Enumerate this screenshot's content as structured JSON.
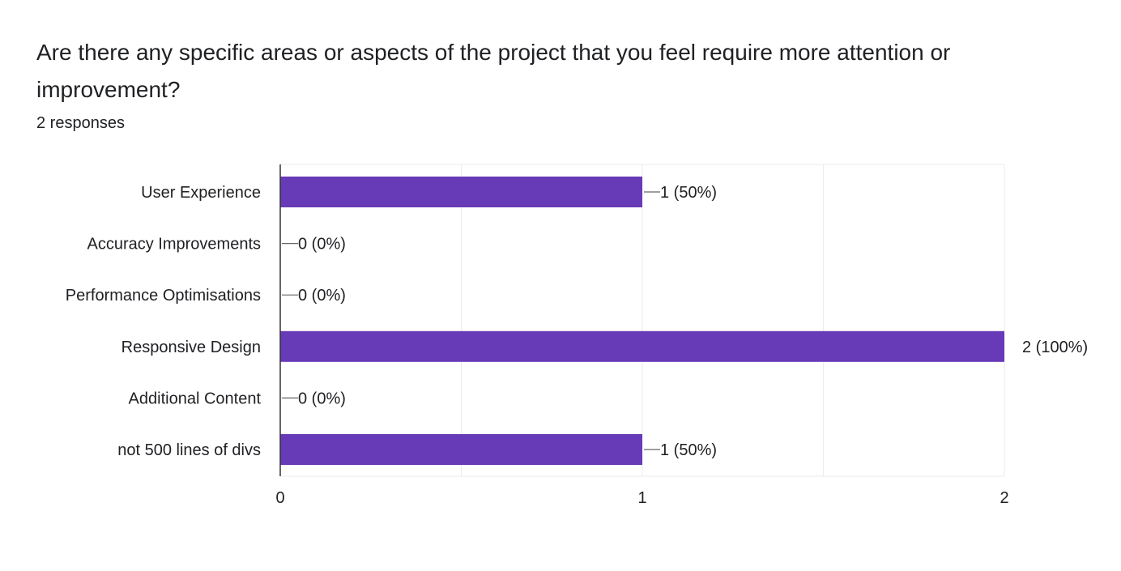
{
  "question": {
    "title": "Are there any specific areas or aspects of the project that you feel require more attention or improvement?",
    "responses": "2 responses"
  },
  "colors": {
    "bar": "#673ab7",
    "axis": "#333333",
    "grid": "#ebebeb",
    "leader": "#666666"
  },
  "chart_data": {
    "type": "bar",
    "orientation": "horizontal",
    "categories": [
      "User Experience",
      "Accuracy Improvements",
      "Performance Optimisations",
      "Responsive Design",
      "Additional Content",
      "not 500 lines of divs"
    ],
    "values": [
      1,
      0,
      0,
      2,
      0,
      1
    ],
    "value_labels": [
      "1 (50%)",
      "0 (0%)",
      "0 (0%)",
      "2 (100%)",
      "0 (0%)",
      "1 (50%)"
    ],
    "xlim": [
      0,
      2
    ],
    "x_ticks": [
      "0",
      "1",
      "2"
    ],
    "grid": true
  }
}
